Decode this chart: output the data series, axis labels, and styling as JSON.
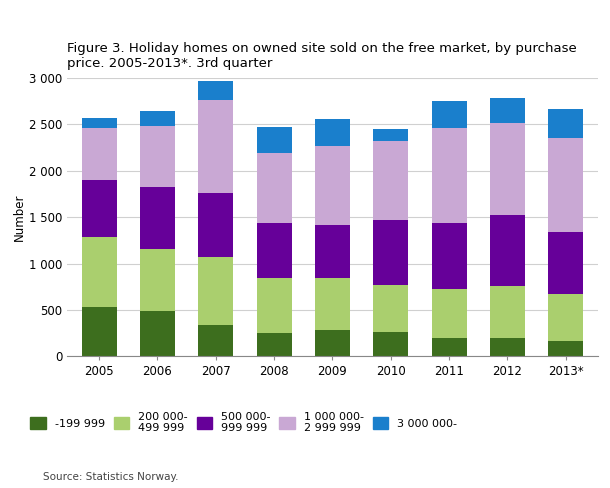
{
  "years": [
    "2005",
    "2006",
    "2007",
    "2008",
    "2009",
    "2010",
    "2011",
    "2012",
    "2013*"
  ],
  "colors": [
    "#3d6e1e",
    "#aacf6e",
    "#660099",
    "#c9a8d4",
    "#1a7fcc"
  ],
  "cat_keys": [
    "-199 999",
    "200 000-499 999",
    "500 000-999 999",
    "1 000 000-2 999 999",
    "3 000 000-"
  ],
  "data": {
    "-199 999": [
      530,
      490,
      340,
      255,
      280,
      260,
      200,
      200,
      160
    ],
    "200 000-499 999": [
      760,
      670,
      725,
      590,
      565,
      510,
      530,
      555,
      510
    ],
    "500 000-999 999": [
      610,
      660,
      700,
      590,
      575,
      695,
      705,
      765,
      670
    ],
    "1 000 000-2 999 999": [
      560,
      660,
      1000,
      755,
      845,
      855,
      1030,
      1000,
      1010
    ],
    "3 000 000-": [
      105,
      160,
      200,
      280,
      290,
      130,
      290,
      270,
      315
    ]
  },
  "legend_labels": [
    "-199 999",
    "200 000-\n499 999",
    "500 000-\n999 999",
    "1 000 000-\n2 999 999",
    "3 000 000-"
  ],
  "title_line1": "Figure 3. Holiday homes on owned site sold on the free market, by purchase",
  "title_line2": "price. 2005-2013*. 3rd quarter",
  "ylabel": "Number",
  "ylim": [
    0,
    3000
  ],
  "yticks": [
    0,
    500,
    1000,
    1500,
    2000,
    2500,
    3000
  ],
  "ytick_labels": [
    "0",
    "500",
    "1 000",
    "1 500",
    "2 000",
    "2 500",
    "3 000"
  ],
  "source": "Source: Statistics Norway.",
  "grid_color": "#d0d0d0",
  "title_fontsize": 9.5,
  "axis_fontsize": 8.5,
  "legend_fontsize": 8,
  "bar_width": 0.6
}
